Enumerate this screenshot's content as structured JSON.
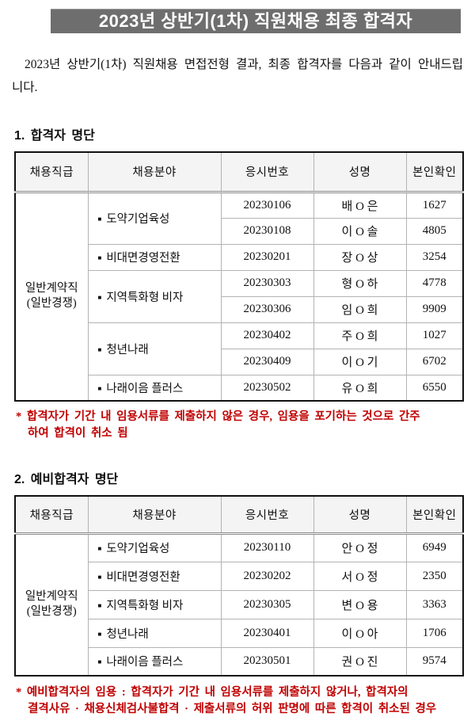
{
  "title": "2023년 상반기(1차) 직원채용 최종 합격자",
  "intro": "2023년 상반기(1차) 직원채용 면접전형 결과, 최종 합격자를 다음과 같이 안내드립니다.",
  "bullet": "■",
  "colors": {
    "title_bg": "#6e6e6e",
    "note_red": "#c00000",
    "header_bg": "#f4f4f4",
    "grid_line": "#b3b3b3",
    "outer_border": "#111111"
  },
  "section1": {
    "heading": "1. 합격자 명단",
    "note": "* 합격자가 기간 내 임용서류를 제출하지 않은 경우, 임용을 포기하는 것으로 간주\n하여 합격이 취소 됨",
    "table": {
      "headers": [
        "채용직급",
        "채용분야",
        "응시번호",
        "성명",
        "본인확인"
      ],
      "grade": "일반계약직",
      "grade_sub": "(일반경쟁)",
      "groups": [
        {
          "field": "도약기업육성",
          "rows": [
            [
              "20230106",
              "배 O 은",
              "1627"
            ],
            [
              "20230108",
              "이 O 솔",
              "4805"
            ]
          ]
        },
        {
          "field": "비대면경영전환",
          "rows": [
            [
              "20230201",
              "장 O 상",
              "3254"
            ]
          ]
        },
        {
          "field": "지역특화형 비자",
          "rows": [
            [
              "20230303",
              "형 O 하",
              "4778"
            ],
            [
              "20230306",
              "임 O 희",
              "9909"
            ]
          ]
        },
        {
          "field": "청년나래",
          "rows": [
            [
              "20230402",
              "주 O 희",
              "1027"
            ],
            [
              "20230409",
              "이 O 기",
              "6702"
            ]
          ]
        },
        {
          "field": "나래이음 플러스",
          "rows": [
            [
              "20230502",
              "유 O 희",
              "6550"
            ]
          ]
        }
      ]
    }
  },
  "section2": {
    "heading": "2. 예비합격자 명단",
    "note": "* 예비합격자의 임용 : 합격자가 기간 내 임용서류를 제출하지 않거나, 합격자의\n결격사유 · 채용신체검사불합격 · 제출서류의 허위 판명에 따른 합격이 취소된 경우",
    "table": {
      "headers": [
        "채용직급",
        "채용분야",
        "응시번호",
        "성명",
        "본인확인"
      ],
      "grade": "일반계약직",
      "grade_sub": "(일반경쟁)",
      "groups": [
        {
          "field": "도약기업육성",
          "rows": [
            [
              "20230110",
              "안 O 정",
              "6949"
            ]
          ]
        },
        {
          "field": "비대면경영전환",
          "rows": [
            [
              "20230202",
              "서 O 정",
              "2350"
            ]
          ]
        },
        {
          "field": "지역특화형 비자",
          "rows": [
            [
              "20230305",
              "변 O 용",
              "3363"
            ]
          ]
        },
        {
          "field": "청년나래",
          "rows": [
            [
              "20230401",
              "이 O 아",
              "1706"
            ]
          ]
        },
        {
          "field": "나래이음 플러스",
          "rows": [
            [
              "20230501",
              "권 O 진",
              "9574"
            ]
          ]
        }
      ]
    }
  }
}
